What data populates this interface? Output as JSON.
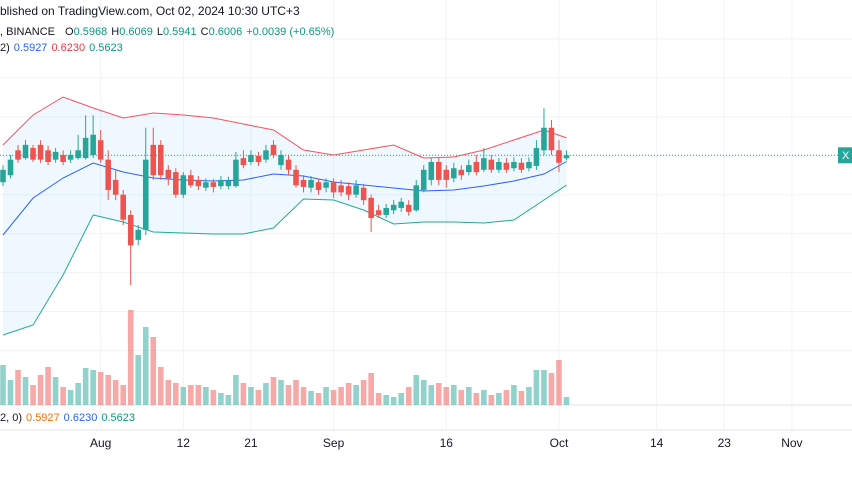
{
  "header": {
    "published": "blished on TradingView.com, Oct 02, 2024 10:30 UTC+3",
    "symbol": ", BINANCE",
    "o": "O",
    "h": "H",
    "l": "L",
    "c": "C",
    "change": "+0.0039 (+0.65%)",
    "bb_prefix": "2)",
    "lower_prefix": "2, 0)"
  },
  "chart_data": {
    "type": "candlestick",
    "x": [
      "07-19",
      "07-20",
      "07-21",
      "07-22",
      "07-23",
      "07-24",
      "07-25",
      "07-26",
      "07-27",
      "07-28",
      "07-29",
      "07-30",
      "07-31",
      "08-01",
      "08-02",
      "08-03",
      "08-04",
      "08-05",
      "08-06",
      "08-07",
      "08-08",
      "08-09",
      "08-10",
      "08-11",
      "08-12",
      "08-13",
      "08-14",
      "08-15",
      "08-16",
      "08-17",
      "08-18",
      "08-19",
      "08-20",
      "08-21",
      "08-22",
      "08-23",
      "08-24",
      "08-25",
      "08-26",
      "08-27",
      "08-28",
      "08-29",
      "08-30",
      "08-31",
      "09-01",
      "09-02",
      "09-03",
      "09-04",
      "09-05",
      "09-06",
      "09-07",
      "09-08",
      "09-09",
      "09-10",
      "09-11",
      "09-12",
      "09-13",
      "09-14",
      "09-15",
      "09-16",
      "09-17",
      "09-18",
      "09-19",
      "09-20",
      "09-21",
      "09-22",
      "09-23",
      "09-24",
      "09-25",
      "09-26",
      "09-27",
      "09-28",
      "09-29",
      "09-30",
      "10-01",
      "10-02"
    ],
    "open": [
      0.566,
      0.575,
      0.607,
      0.597,
      0.61,
      0.614,
      0.607,
      0.595,
      0.601,
      0.595,
      0.597,
      0.597,
      0.601,
      0.62,
      0.595,
      0.569,
      0.55,
      0.524,
      0.492,
      0.505,
      0.614,
      0.614,
      0.582,
      0.579,
      0.55,
      0.575,
      0.569,
      0.559,
      0.566,
      0.561,
      0.561,
      0.561,
      0.597,
      0.592,
      0.6,
      0.595,
      0.614,
      0.588,
      0.595,
      0.582,
      0.569,
      0.559,
      0.566,
      0.559,
      0.566,
      0.562,
      0.561,
      0.55,
      0.559,
      0.546,
      0.53,
      0.524,
      0.53,
      0.533,
      0.537,
      0.53,
      0.556,
      0.569,
      0.592,
      0.582,
      0.571,
      0.582,
      0.579,
      0.592,
      0.582,
      0.595,
      0.582,
      0.591,
      0.584,
      0.591,
      0.584,
      0.587,
      0.607,
      0.636,
      0.607,
      0.5968
    ],
    "high": [
      0.588,
      0.601,
      0.614,
      0.62,
      0.614,
      0.62,
      0.613,
      0.61,
      0.607,
      0.607,
      0.627,
      0.652,
      0.652,
      0.633,
      0.607,
      0.582,
      0.556,
      0.53,
      0.511,
      0.636,
      0.636,
      0.62,
      0.588,
      0.584,
      0.579,
      0.582,
      0.574,
      0.571,
      0.57,
      0.574,
      0.573,
      0.605,
      0.607,
      0.607,
      0.605,
      0.614,
      0.62,
      0.607,
      0.601,
      0.588,
      0.575,
      0.574,
      0.571,
      0.571,
      0.571,
      0.569,
      0.566,
      0.569,
      0.564,
      0.55,
      0.537,
      0.538,
      0.543,
      0.546,
      0.543,
      0.569,
      0.588,
      0.597,
      0.597,
      0.588,
      0.591,
      0.588,
      0.595,
      0.601,
      0.61,
      0.601,
      0.597,
      0.597,
      0.598,
      0.597,
      0.598,
      0.62,
      0.661,
      0.646,
      0.62,
      0.6069
    ],
    "low": [
      0.561,
      0.571,
      0.591,
      0.595,
      0.592,
      0.591,
      0.588,
      0.591,
      0.588,
      0.591,
      0.595,
      0.595,
      0.597,
      0.591,
      0.543,
      0.543,
      0.511,
      0.434,
      0.485,
      0.498,
      0.569,
      0.569,
      0.562,
      0.546,
      0.546,
      0.559,
      0.556,
      0.555,
      0.553,
      0.557,
      0.557,
      0.559,
      0.584,
      0.588,
      0.587,
      0.591,
      0.597,
      0.582,
      0.575,
      0.559,
      0.553,
      0.553,
      0.55,
      0.553,
      0.546,
      0.548,
      0.543,
      0.546,
      0.537,
      0.502,
      0.52,
      0.52,
      0.525,
      0.528,
      0.523,
      0.528,
      0.553,
      0.562,
      0.562,
      0.559,
      0.566,
      0.569,
      0.575,
      0.575,
      0.579,
      0.578,
      0.578,
      0.578,
      0.58,
      0.578,
      0.58,
      0.582,
      0.601,
      0.601,
      0.579,
      0.5941
    ],
    "close": [
      0.582,
      0.595,
      0.595,
      0.614,
      0.595,
      0.595,
      0.592,
      0.605,
      0.592,
      0.601,
      0.607,
      0.623,
      0.627,
      0.595,
      0.556,
      0.55,
      0.518,
      0.485,
      0.505,
      0.595,
      0.575,
      0.575,
      0.571,
      0.55,
      0.575,
      0.562,
      0.561,
      0.566,
      0.56,
      0.569,
      0.568,
      0.595,
      0.588,
      0.601,
      0.592,
      0.607,
      0.601,
      0.601,
      0.582,
      0.562,
      0.56,
      0.569,
      0.556,
      0.566,
      0.553,
      0.553,
      0.55,
      0.562,
      0.543,
      0.52,
      0.524,
      0.533,
      0.537,
      0.541,
      0.528,
      0.562,
      0.582,
      0.592,
      0.569,
      0.569,
      0.584,
      0.575,
      0.588,
      0.579,
      0.597,
      0.582,
      0.592,
      0.582,
      0.592,
      0.582,
      0.592,
      0.61,
      0.636,
      0.607,
      0.591,
      0.6006
    ],
    "volume": [
      40,
      25,
      35,
      28,
      20,
      30,
      38,
      28,
      18,
      15,
      22,
      37,
      35,
      33,
      30,
      25,
      20,
      95,
      50,
      78,
      68,
      38,
      25,
      22,
      18,
      20,
      20,
      18,
      15,
      12,
      10,
      30,
      22,
      18,
      15,
      22,
      28,
      25,
      20,
      25,
      18,
      14,
      12,
      18,
      15,
      18,
      22,
      20,
      25,
      32,
      12,
      10,
      8,
      12,
      18,
      30,
      25,
      20,
      22,
      18,
      20,
      15,
      18,
      12,
      15,
      10,
      12,
      15,
      20,
      14,
      18,
      35,
      35,
      32,
      45,
      8
    ],
    "up_color": "#26a69a",
    "down_color": "#ef5350",
    "xlim": [
      "07-19",
      "11-09"
    ],
    "xticks": [
      {
        "value": "08-01",
        "label": "Aug"
      },
      {
        "value": "08-12",
        "label": "12"
      },
      {
        "value": "08-21",
        "label": "21"
      },
      {
        "value": "09-01",
        "label": "Sep"
      },
      {
        "value": "09-16",
        "label": "16"
      },
      {
        "value": "10-01",
        "label": "Oct"
      },
      {
        "value": "10-14",
        "label": "14"
      },
      {
        "value": "10-23",
        "label": "23"
      },
      {
        "value": "11-01",
        "label": "Nov"
      }
    ],
    "ylim": [
      0.28,
      0.8
    ],
    "yticks": [
      0.35,
      0.4,
      0.45,
      0.5,
      0.55,
      0.6,
      0.65,
      0.7,
      0.75
    ],
    "vlim": [
      0,
      100
    ],
    "grid": true,
    "bands": {
      "x": [
        "07-19",
        "07-23",
        "07-27",
        "07-31",
        "08-04",
        "08-08",
        "08-12",
        "08-16",
        "08-20",
        "08-24",
        "08-28",
        "09-01",
        "09-05",
        "09-09",
        "09-13",
        "09-17",
        "09-21",
        "09-25",
        "09-29",
        "10-02"
      ],
      "upper": [
        0.6138,
        0.6523,
        0.6755,
        0.6613,
        0.6485,
        0.6549,
        0.6523,
        0.6485,
        0.6408,
        0.6331,
        0.6074,
        0.601,
        0.6074,
        0.6138,
        0.5971,
        0.5984,
        0.6074,
        0.6202,
        0.6331,
        0.623
      ],
      "middle": [
        0.4983,
        0.5458,
        0.5715,
        0.5907,
        0.5792,
        0.5715,
        0.5689,
        0.5676,
        0.5689,
        0.5766,
        0.574,
        0.5663,
        0.5625,
        0.5586,
        0.5548,
        0.556,
        0.5612,
        0.5676,
        0.5766,
        0.5927
      ],
      "lower": [
        0.3699,
        0.3827,
        0.4469,
        0.5239,
        0.515,
        0.5021,
        0.5008,
        0.4995,
        0.4995,
        0.5073,
        0.5445,
        0.5432,
        0.5304,
        0.5124,
        0.515,
        0.515,
        0.5137,
        0.5175,
        0.5432,
        0.5623
      ],
      "upper_last_label": "0.6230",
      "middle_last_label": "0.5927",
      "lower_last_label": "0.5623",
      "upper_color": "#f7525f",
      "middle_color": "#2962ff",
      "lower_color": "#22ab94",
      "fill_color": "#2196f3"
    },
    "price_label": "X"
  }
}
